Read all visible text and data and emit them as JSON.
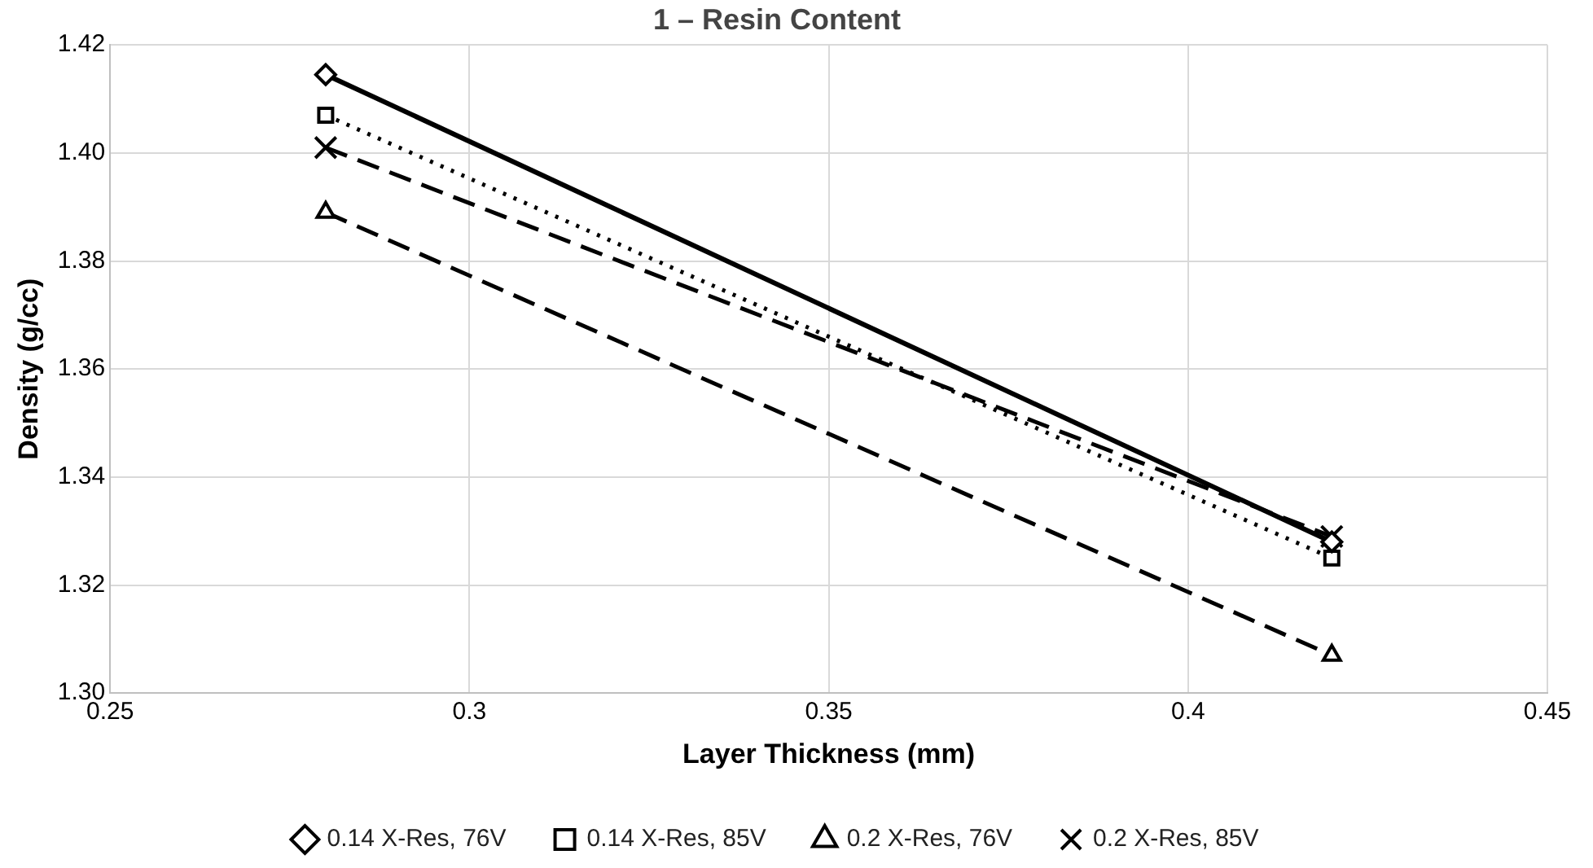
{
  "chart_data": {
    "type": "line",
    "title": "1 – Resin Content",
    "xlabel": "Layer Thickness (mm)",
    "ylabel": "Density (g/cc)",
    "x": [
      0.28,
      0.42
    ],
    "xlim": [
      0.25,
      0.45
    ],
    "xticks": [
      0.25,
      0.3,
      0.35,
      0.4,
      0.45
    ],
    "ylim": [
      1.3,
      1.42
    ],
    "yticks": [
      {
        "value": 1.3,
        "label": "1.30"
      },
      {
        "value": 1.32,
        "label": "1.32"
      },
      {
        "value": 1.34,
        "label": "1.34"
      },
      {
        "value": 1.36,
        "label": "1.36"
      },
      {
        "value": 1.38,
        "label": "1.38"
      },
      {
        "value": 1.4,
        "label": "1.40"
      },
      {
        "value": 1.42,
        "label": "1.42"
      }
    ],
    "grid": true,
    "legend": "bottom",
    "series": [
      {
        "name": "0.14 X-Res, 76V",
        "color": "#000000",
        "values": [
          1.4145,
          1.328
        ],
        "marker": "diamond",
        "line_style": "solid"
      },
      {
        "name": "0.14 X-Res, 85V",
        "color": "#000000",
        "values": [
          1.407,
          1.325
        ],
        "marker": "square",
        "line_style": "dotted"
      },
      {
        "name": "0.2 X-Res, 76V",
        "color": "#000000",
        "values": [
          1.389,
          1.307
        ],
        "marker": "triangle",
        "line_style": "dashed"
      },
      {
        "name": "0.2 X-Res, 85V",
        "color": "#000000",
        "values": [
          1.401,
          1.329
        ],
        "marker": "cross",
        "line_style": "dashed"
      }
    ]
  }
}
